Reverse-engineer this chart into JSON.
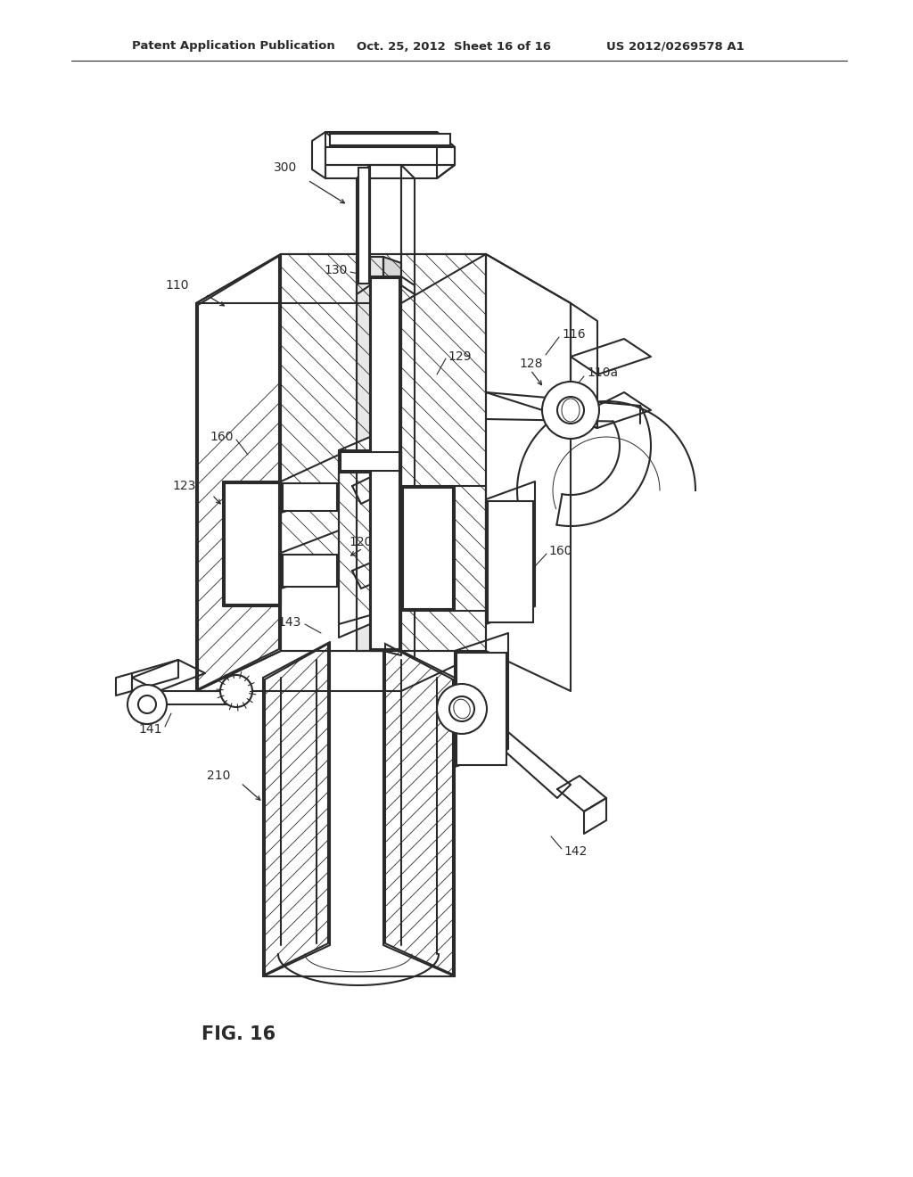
{
  "header_left": "Patent Application Publication",
  "header_mid": "Oct. 25, 2012  Sheet 16 of 16",
  "header_right": "US 2012/0269578 A1",
  "figure_label": "FIG. 16",
  "bg_color": "#ffffff",
  "lc": "#2a2a2a",
  "lw_main": 1.5,
  "lw_thin": 0.7,
  "lw_hatch": 0.6,
  "fig_w": 10.24,
  "fig_h": 13.2,
  "dpi": 100
}
